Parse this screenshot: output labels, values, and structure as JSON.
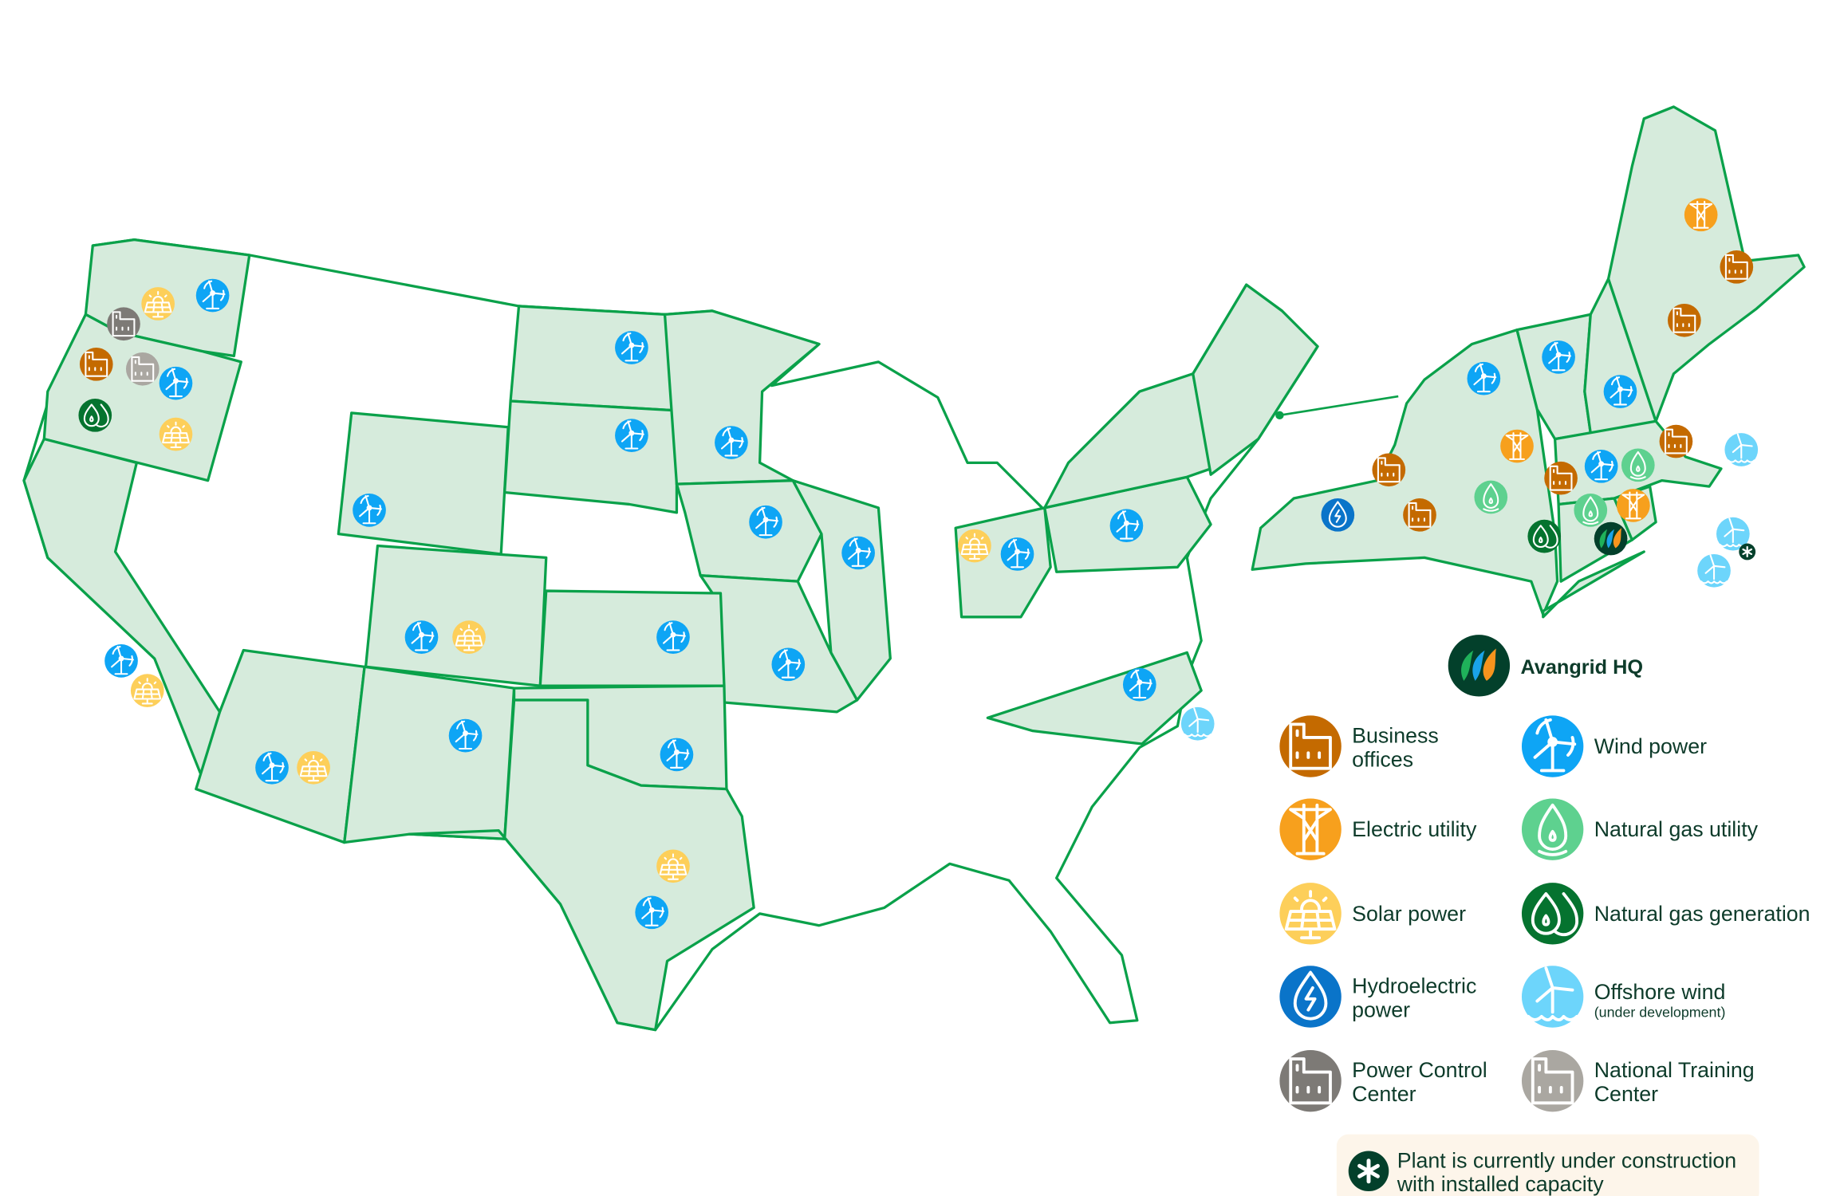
{
  "colors": {
    "state_fill": "#d6ebdc",
    "state_border": "#0aa14a",
    "business_offices": "#c46a00",
    "electric_utility": "#f7a01d",
    "solar_power": "#fdcf5a",
    "hydroelectric_power": "#0a74c9",
    "power_control_center": "#7d7a76",
    "wind_power": "#0ea5f5",
    "natural_gas_utility": "#5ed18f",
    "natural_gas_generation": "#05732f",
    "offshore_wind": "#6dd5fb",
    "national_training_center": "#aaa7a1",
    "hq": "#03402b",
    "note_background": "#fdf5ea"
  },
  "legend": {
    "hq": {
      "label": "Avangrid HQ",
      "icon": "avangrid-logo-icon"
    },
    "items": [
      {
        "key": "office",
        "line1": "Business",
        "line2": "offices",
        "icon": "building-icon"
      },
      {
        "key": "wind",
        "line1": "Wind power",
        "line2": "",
        "icon": "wind-turbine-icon"
      },
      {
        "key": "electric",
        "line1": "Electric utility",
        "line2": "",
        "icon": "power-pylon-icon"
      },
      {
        "key": "gasutil",
        "line1": "Natural gas utility",
        "line2": "",
        "icon": "gas-flame-icon"
      },
      {
        "key": "solar",
        "line1": "Solar power",
        "line2": "",
        "icon": "solar-panel-icon"
      },
      {
        "key": "gasgen",
        "line1": "Natural gas generation",
        "line2": "",
        "icon": "gas-drops-icon"
      },
      {
        "key": "hydro",
        "line1": "Hydroelectric",
        "line2": "power",
        "icon": "hydro-drop-icon"
      },
      {
        "key": "offshore",
        "line1": "Offshore wind",
        "line2": "(under development)",
        "icon": "offshore-wind-icon"
      },
      {
        "key": "pcc",
        "line1": "Power Control",
        "line2": "Center",
        "icon": "building-icon"
      },
      {
        "key": "training",
        "line1": "National Training",
        "line2": "Center",
        "icon": "building-icon"
      }
    ],
    "note": {
      "line1": "Plant is currently under construction",
      "line2": "with installed capacity",
      "icon": "asterisk-icon"
    }
  },
  "markers": [
    {
      "region": "WA",
      "type": "solar"
    },
    {
      "region": "WA",
      "type": "wind"
    },
    {
      "region": "WA",
      "type": "pcc"
    },
    {
      "region": "OR",
      "type": "office"
    },
    {
      "region": "OR",
      "type": "training"
    },
    {
      "region": "OR",
      "type": "wind"
    },
    {
      "region": "OR",
      "type": "gasgen"
    },
    {
      "region": "OR",
      "type": "solar"
    },
    {
      "region": "WY",
      "type": "wind"
    },
    {
      "region": "ND",
      "type": "wind"
    },
    {
      "region": "SD",
      "type": "wind"
    },
    {
      "region": "MN",
      "type": "wind"
    },
    {
      "region": "IA",
      "type": "wind"
    },
    {
      "region": "IL",
      "type": "wind"
    },
    {
      "region": "MO",
      "type": "wind"
    },
    {
      "region": "KS",
      "type": "wind"
    },
    {
      "region": "CO",
      "type": "wind"
    },
    {
      "region": "CO",
      "type": "solar"
    },
    {
      "region": "CA",
      "type": "wind"
    },
    {
      "region": "CA",
      "type": "solar"
    },
    {
      "region": "AZ",
      "type": "wind"
    },
    {
      "region": "AZ",
      "type": "solar"
    },
    {
      "region": "NM",
      "type": "wind"
    },
    {
      "region": "OK",
      "type": "wind"
    },
    {
      "region": "TX",
      "type": "solar"
    },
    {
      "region": "TX",
      "type": "wind"
    },
    {
      "region": "OH",
      "type": "solar"
    },
    {
      "region": "OH",
      "type": "wind"
    },
    {
      "region": "PA",
      "type": "wind"
    },
    {
      "region": "NC",
      "type": "wind"
    },
    {
      "region": "NC offshore",
      "type": "offshore"
    },
    {
      "region": "ME",
      "type": "electric"
    },
    {
      "region": "ME",
      "type": "office"
    },
    {
      "region": "ME",
      "type": "office"
    },
    {
      "region": "NH",
      "type": "wind"
    },
    {
      "region": "VT",
      "type": "wind"
    },
    {
      "region": "NY",
      "type": "wind"
    },
    {
      "region": "NY",
      "type": "electric"
    },
    {
      "region": "NY",
      "type": "office"
    },
    {
      "region": "NY",
      "type": "hydro"
    },
    {
      "region": "NY",
      "type": "office"
    },
    {
      "region": "NY",
      "type": "gasutil"
    },
    {
      "region": "NY",
      "type": "gasgen"
    },
    {
      "region": "NY",
      "type": "office"
    },
    {
      "region": "MA",
      "type": "wind"
    },
    {
      "region": "MA",
      "type": "gasutil"
    },
    {
      "region": "MA",
      "type": "office"
    },
    {
      "region": "CT",
      "type": "gasutil"
    },
    {
      "region": "CT",
      "type": "electric"
    },
    {
      "region": "CT",
      "type": "hq"
    },
    {
      "region": "MA offshore",
      "type": "offshore"
    },
    {
      "region": "MA offshore",
      "type": "offshore",
      "under_construction": true
    },
    {
      "region": "MA offshore",
      "type": "offshore"
    }
  ]
}
